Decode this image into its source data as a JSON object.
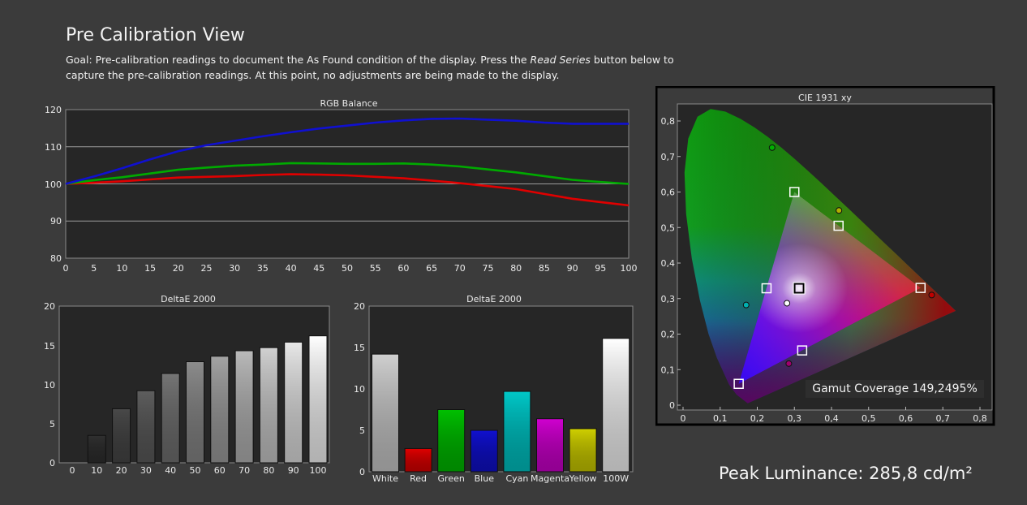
{
  "page": {
    "title": "Pre Calibration View",
    "goal_prefix": "Goal: Pre-calibration readings to document the As Found condition of the display. Press the ",
    "goal_emph": "Read Series",
    "goal_suffix": " button below to capture the pre-calibration readings. At this point, no adjustments are being made to the display.",
    "peak_luminance": "Peak Luminance: 285,8 cd/m²",
    "gamut_coverage": "Gamut Coverage 149,2495%"
  },
  "chart_data": [
    {
      "id": "rgb",
      "type": "line",
      "title": "RGB Balance",
      "x": [
        0,
        5,
        10,
        15,
        20,
        25,
        30,
        35,
        40,
        45,
        50,
        55,
        60,
        65,
        70,
        75,
        80,
        85,
        90,
        95,
        100
      ],
      "xticks": [
        "0",
        "5",
        "10",
        "15",
        "20",
        "25",
        "30",
        "35",
        "40",
        "45",
        "50",
        "55",
        "60",
        "65",
        "70",
        "75",
        "80",
        "85",
        "90",
        "95",
        "100"
      ],
      "yticks": [
        "120",
        "110",
        "100",
        "90",
        "80"
      ],
      "ylim": [
        80,
        120
      ],
      "grid": true,
      "series": [
        {
          "color": "#e00000",
          "values": [
            100,
            100.3,
            100.7,
            101.2,
            101.7,
            101.9,
            102.1,
            102.4,
            102.6,
            102.5,
            102.3,
            101.9,
            101.5,
            100.9,
            100.2,
            99.4,
            98.6,
            97.3,
            96.0,
            95.1,
            94.2
          ]
        },
        {
          "color": "#00aa00",
          "values": [
            100,
            101.0,
            101.8,
            102.8,
            103.8,
            104.4,
            104.9,
            105.2,
            105.6,
            105.5,
            105.4,
            105.4,
            105.5,
            105.2,
            104.7,
            103.9,
            103.1,
            102.1,
            101.1,
            100.5,
            100.0
          ]
        },
        {
          "color": "#1010d0",
          "values": [
            100,
            102.0,
            104.2,
            106.6,
            108.8,
            110.4,
            111.6,
            112.8,
            113.9,
            114.9,
            115.7,
            116.5,
            117.1,
            117.5,
            117.6,
            117.3,
            117.0,
            116.5,
            116.2,
            116.2,
            116.2
          ]
        }
      ]
    },
    {
      "id": "de_gray",
      "type": "bar",
      "title": "DeltaE 2000",
      "categories": [
        "0",
        "10",
        "20",
        "30",
        "40",
        "50",
        "60",
        "70",
        "80",
        "90",
        "100"
      ],
      "values": [
        0,
        3.5,
        6.9,
        9.2,
        11.4,
        12.9,
        13.6,
        14.3,
        14.7,
        15.4,
        16.2
      ],
      "colors": [
        "#000000",
        "#303030",
        "#494949",
        "#5e5e5e",
        "#757575",
        "#8c8c8c",
        "#a3a3a3",
        "#bababa",
        "#d1d1d1",
        "#e8e8e8",
        "#ffffff"
      ],
      "yticks": [
        "20",
        "15",
        "10",
        "5",
        "0"
      ],
      "ylim": [
        0,
        20
      ],
      "grid": false
    },
    {
      "id": "de_color",
      "type": "bar",
      "title": "DeltaE 2000",
      "categories": [
        "White",
        "Red",
        "Green",
        "Blue",
        "Cyan",
        "Magenta",
        "Yellow",
        "100W"
      ],
      "values": [
        14.2,
        2.8,
        7.5,
        5.0,
        9.7,
        6.4,
        5.2,
        16.1
      ],
      "colors": [
        "#d0d0d0",
        "#e00000",
        "#00c000",
        "#1010d0",
        "#00c8c8",
        "#d000d0",
        "#d0d000",
        "#ffffff"
      ],
      "yticks": [
        "20",
        "15",
        "10",
        "5",
        "0"
      ],
      "ylim": [
        0,
        20
      ],
      "grid": false
    },
    {
      "id": "cie",
      "type": "scatter",
      "title": "CIE 1931 xy",
      "xticks": [
        "0",
        "0,1",
        "0,2",
        "0,3",
        "0,4",
        "0,5",
        "0,6",
        "0,7",
        "0,8"
      ],
      "yticks": [
        "0,8",
        "0,7",
        "0,6",
        "0,5",
        "0,4",
        "0,3",
        "0,2",
        "0,1",
        "0"
      ],
      "xlim": [
        0,
        0.8
      ],
      "ylim": [
        0,
        0.85
      ],
      "targets": [
        {
          "name": "Red",
          "x": 0.64,
          "y": 0.33
        },
        {
          "name": "Green",
          "x": 0.3,
          "y": 0.6
        },
        {
          "name": "Blue",
          "x": 0.15,
          "y": 0.06
        },
        {
          "name": "White",
          "x": 0.3127,
          "y": 0.329
        },
        {
          "name": "Cyan",
          "x": 0.225,
          "y": 0.329
        },
        {
          "name": "Magenta",
          "x": 0.321,
          "y": 0.154
        },
        {
          "name": "Yellow",
          "x": 0.419,
          "y": 0.505
        }
      ],
      "measured": [
        {
          "name": "Red",
          "x": 0.67,
          "y": 0.31,
          "color": "#c00000"
        },
        {
          "name": "Green",
          "x": 0.24,
          "y": 0.725,
          "color": "#00b000"
        },
        {
          "name": "Blue",
          "x": 0.285,
          "y": 0.117,
          "color": "#a00070"
        },
        {
          "name": "White",
          "x": 0.28,
          "y": 0.287,
          "color": "#ffffff"
        },
        {
          "name": "Cyan",
          "x": 0.17,
          "y": 0.282,
          "color": "#00b0b0"
        },
        {
          "name": "Yellow",
          "x": 0.42,
          "y": 0.548,
          "color": "#b0b000"
        }
      ]
    }
  ]
}
